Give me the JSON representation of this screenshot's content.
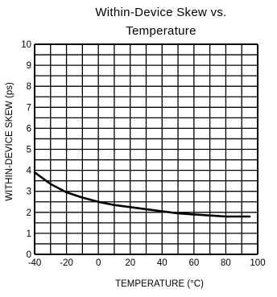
{
  "chart_data": {
    "type": "line",
    "title": [
      "Within-Device Skew vs.",
      "Temperature"
    ],
    "xlabel": "TEMPERATURE (°C)",
    "ylabel": "WITHIN-DEVICE SKEW (ps)",
    "xlim": [
      -40,
      100
    ],
    "ylim": [
      0,
      10
    ],
    "grid": true,
    "x_ticks": [
      -40,
      -20,
      0,
      20,
      40,
      60,
      80,
      100
    ],
    "x_tick_labels": [
      "-40",
      "-20",
      "0",
      "20",
      "40",
      "60",
      "80",
      "100"
    ],
    "y_ticks": [
      0,
      1,
      2,
      3,
      4,
      5,
      6,
      7,
      8,
      9,
      10
    ],
    "y_tick_labels": [
      "0",
      "1",
      "2",
      "3",
      "4",
      "5",
      "6",
      "7",
      "8",
      "9",
      "10"
    ],
    "x_grid_step": 10,
    "y_grid_step": 0.5,
    "series": [
      {
        "x": [
          -40,
          -30,
          -20,
          -10,
          0,
          10,
          20,
          30,
          40,
          50,
          60,
          70,
          80,
          90,
          95
        ],
        "y": [
          3.9,
          3.35,
          2.95,
          2.7,
          2.5,
          2.35,
          2.25,
          2.15,
          2.05,
          1.95,
          1.9,
          1.85,
          1.8,
          1.8,
          1.8
        ],
        "color": "#000000"
      }
    ]
  }
}
